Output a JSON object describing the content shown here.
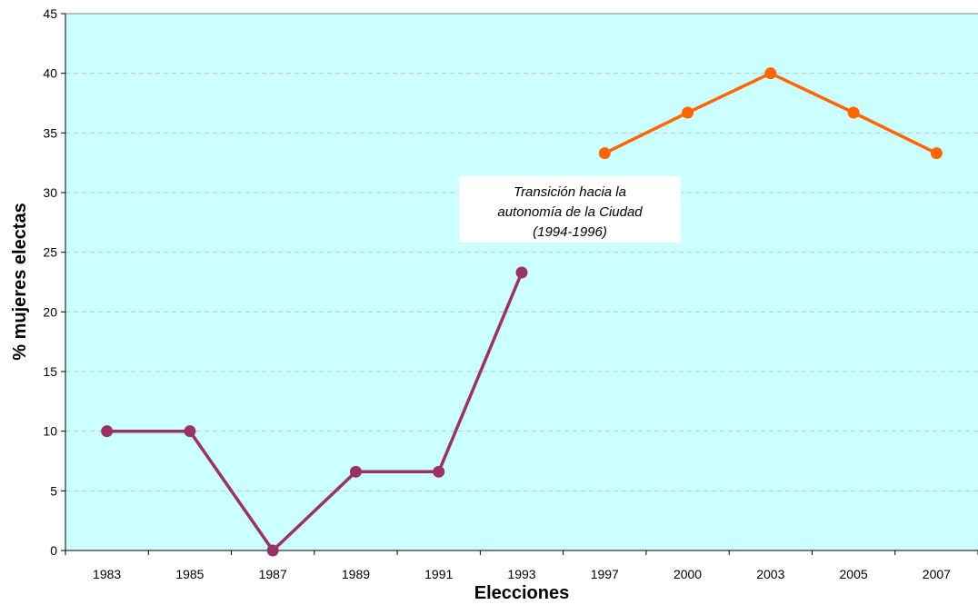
{
  "chart_data": {
    "type": "line",
    "title": "",
    "xlabel": "Elecciones",
    "ylabel": "% mujeres electas",
    "categories": [
      "1983",
      "1985",
      "1987",
      "1989",
      "1991",
      "1993",
      "1997",
      "2000",
      "2003",
      "2005",
      "2007"
    ],
    "ylim": [
      0,
      45
    ],
    "yticks": [
      0,
      5,
      10,
      15,
      20,
      25,
      30,
      35,
      40,
      45
    ],
    "grid": true,
    "legend": "none",
    "plot_background": "#CCFFFF",
    "series": [
      {
        "color": "#993366",
        "values": [
          10,
          10,
          0,
          6.6,
          6.6,
          23.3,
          null,
          null,
          null,
          null,
          null
        ]
      },
      {
        "color": "#FF6600",
        "values": [
          null,
          null,
          null,
          null,
          null,
          null,
          33.3,
          36.7,
          40,
          36.7,
          33.3
        ]
      }
    ],
    "annotation": {
      "lines": [
        "Transición hacia la",
        "autonomía de la Ciudad",
        "(1994-1996)"
      ]
    }
  }
}
